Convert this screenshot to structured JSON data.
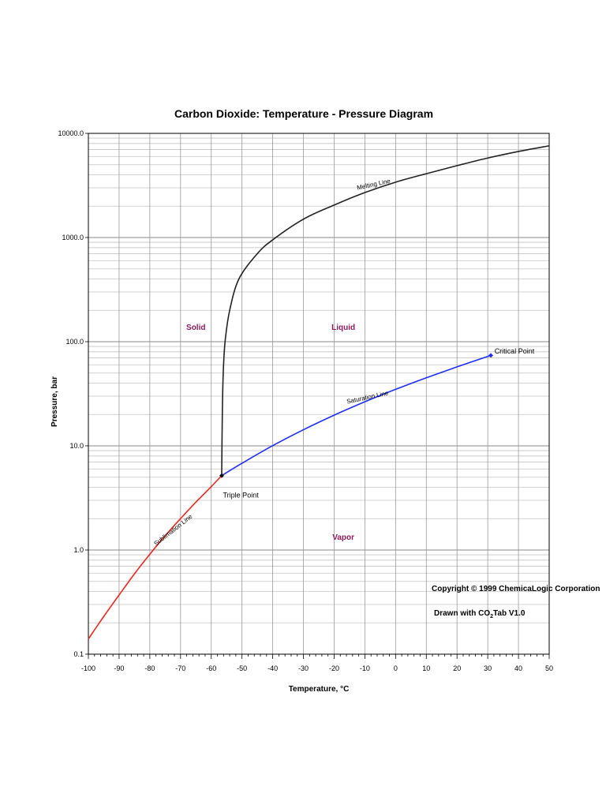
{
  "chart_data": {
    "type": "line",
    "title": "Carbon Dioxide: Temperature - Pressure Diagram",
    "xlabel": "Temperature, °C",
    "ylabel": "Pressure, bar",
    "xlim": [
      -100,
      50
    ],
    "ylim": [
      0.1,
      10000
    ],
    "yscale": "log",
    "grid": true,
    "x_ticks": [
      -100,
      -90,
      -80,
      -70,
      -60,
      -50,
      -40,
      -30,
      -20,
      -10,
      0,
      10,
      20,
      30,
      40,
      50
    ],
    "y_ticks": [
      {
        "value": 0.1,
        "label": "0.1"
      },
      {
        "value": 1,
        "label": "1.0"
      },
      {
        "value": 10,
        "label": "10.0"
      },
      {
        "value": 100,
        "label": "100.0"
      },
      {
        "value": 1000,
        "label": "1000.0"
      },
      {
        "value": 10000,
        "label": "10000.0"
      }
    ],
    "series": [
      {
        "name": "Sublimation Line",
        "color": "#e8281e",
        "points": [
          [
            -100,
            0.14
          ],
          [
            -95,
            0.23
          ],
          [
            -90,
            0.37
          ],
          [
            -85,
            0.59
          ],
          [
            -80,
            0.91
          ],
          [
            -75,
            1.37
          ],
          [
            -70,
            2.0
          ],
          [
            -65,
            2.88
          ],
          [
            -60,
            4.06
          ],
          [
            -56.6,
            5.18
          ]
        ]
      },
      {
        "name": "Saturation Line",
        "color": "#1f2ef0",
        "points": [
          [
            -56.6,
            5.18
          ],
          [
            -50,
            6.8
          ],
          [
            -40,
            10.05
          ],
          [
            -30,
            14.28
          ],
          [
            -20,
            19.7
          ],
          [
            -10,
            26.49
          ],
          [
            0,
            34.85
          ],
          [
            10,
            45.02
          ],
          [
            20,
            57.29
          ],
          [
            25,
            64.34
          ],
          [
            31.0,
            73.8
          ]
        ]
      },
      {
        "name": "Melting Line",
        "color": "#222222",
        "points": [
          [
            -56.6,
            5.18
          ],
          [
            -56.4,
            20
          ],
          [
            -56.1,
            50
          ],
          [
            -55.5,
            100
          ],
          [
            -54,
            200
          ],
          [
            -51,
            400
          ],
          [
            -45,
            700
          ],
          [
            -40,
            950
          ],
          [
            -30,
            1500
          ],
          [
            -20,
            2050
          ],
          [
            -10,
            2700
          ],
          [
            0,
            3400
          ],
          [
            10,
            4100
          ],
          [
            20,
            4900
          ],
          [
            30,
            5800
          ],
          [
            40,
            6700
          ],
          [
            50,
            7600
          ]
        ]
      }
    ],
    "points": [
      {
        "name": "Triple Point",
        "x": -56.6,
        "y": 5.18
      },
      {
        "name": "Critical Point",
        "x": 31.0,
        "y": 73.8
      }
    ],
    "region_labels": [
      {
        "text": "Solid",
        "x": -65,
        "y": 130
      },
      {
        "text": "Liquid",
        "x": -17,
        "y": 130
      },
      {
        "text": "Vapor",
        "x": -17,
        "y": 1.25
      }
    ],
    "region_label_color": "#8b1a5a",
    "line_labels": [
      {
        "text": "Melting Line",
        "x": -7,
        "y": 3100,
        "angle": -12
      },
      {
        "text": "Saturation Line",
        "x": -9,
        "y": 28,
        "angle": -12
      },
      {
        "text": "Sublimation Line",
        "x": -72,
        "y": 1.5,
        "angle": -38
      }
    ],
    "point_labels": [
      {
        "text": "Triple Point",
        "x": -56.2,
        "y": 3.2
      },
      {
        "text": "Critical Point",
        "x": 32.2,
        "y": 77
      }
    ],
    "annotations": {
      "copyright": "Copyright © 1999 ChemicaLogic Corporation",
      "drawn_prefix": "Drawn with CO",
      "drawn_sub": "2",
      "drawn_suffix": "Tab V1.0"
    }
  }
}
